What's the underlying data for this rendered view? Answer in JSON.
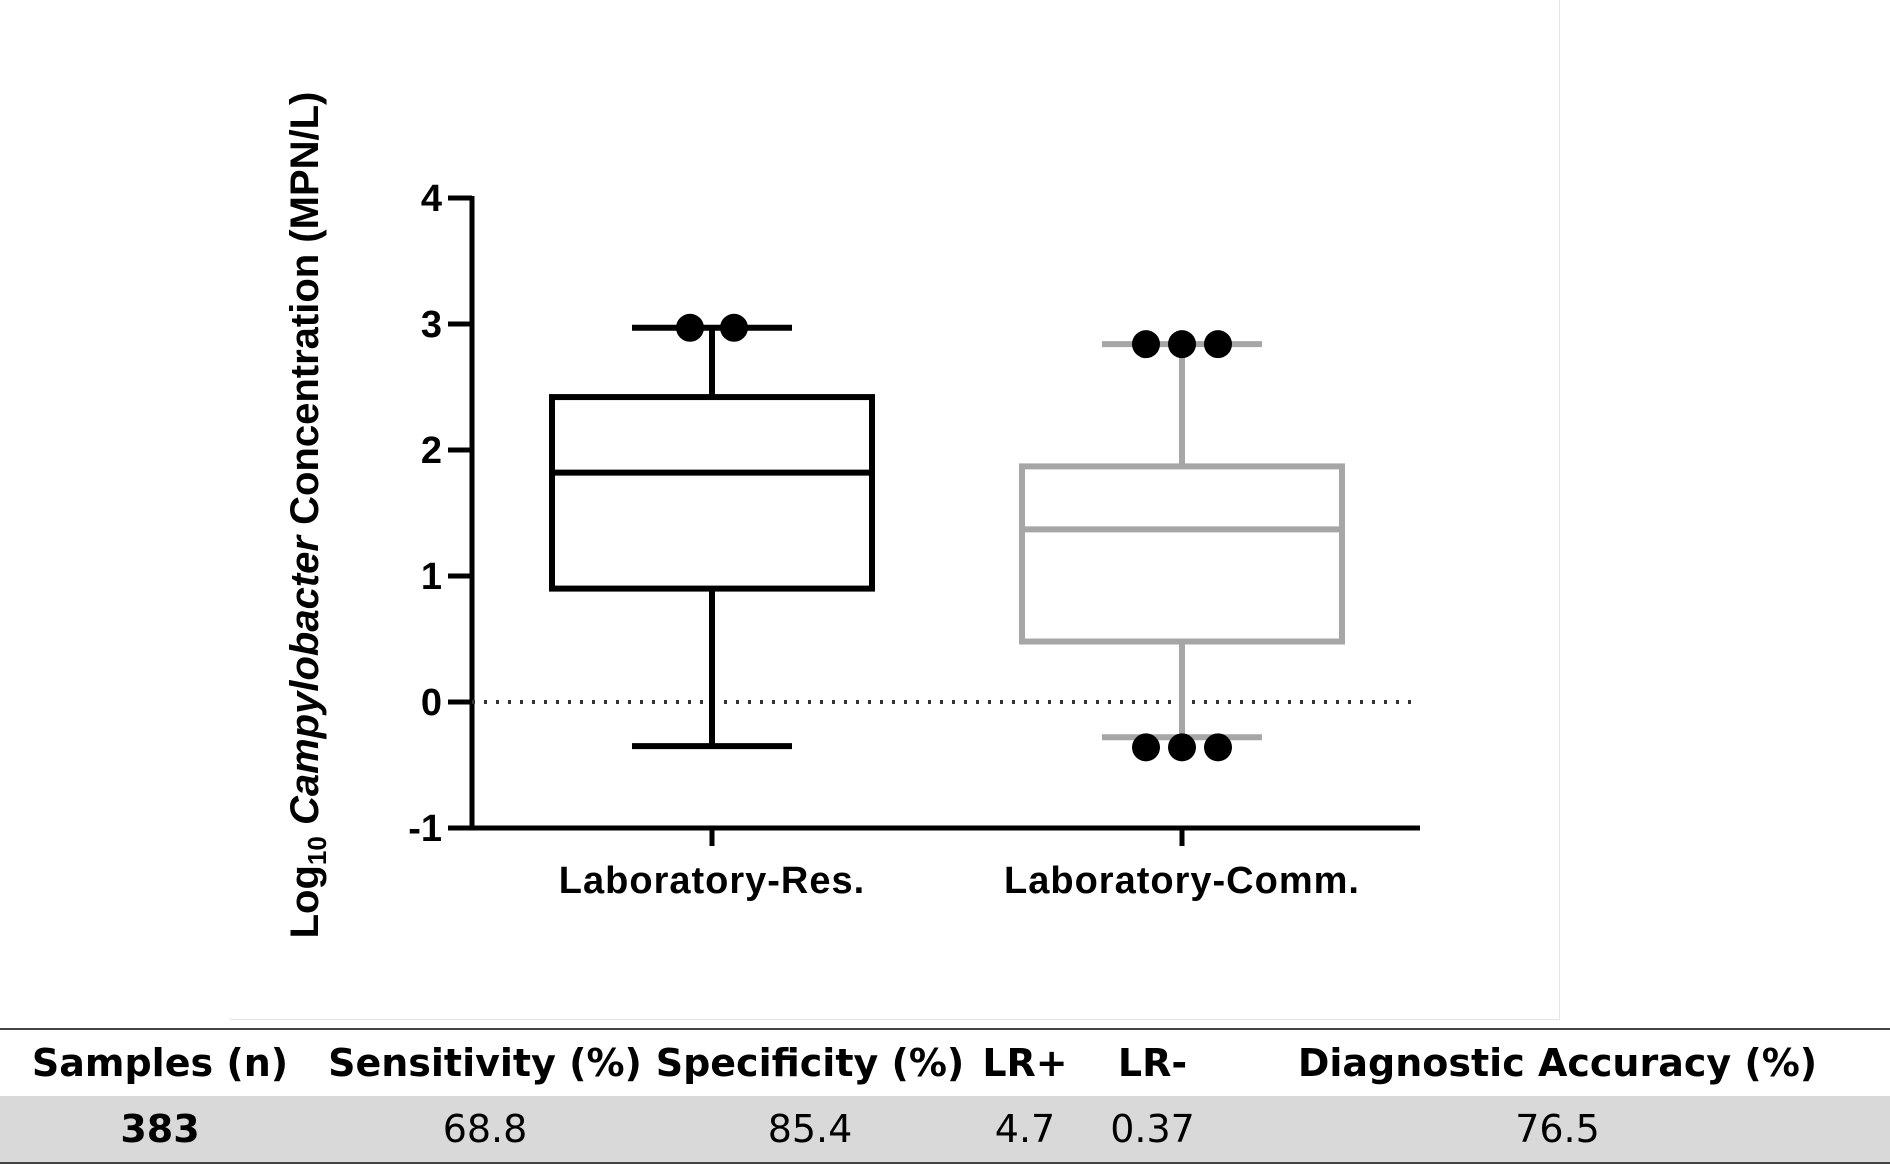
{
  "chart_data": {
    "type": "box",
    "ylabel_prefix": "Log",
    "ylabel_subscript": "10",
    "ylabel_italic": "Campylobacter",
    "ylabel_suffix": "Concentration  (MPN/L)",
    "ylim": [
      -1,
      4
    ],
    "yticks": [
      "-1",
      "0",
      "1",
      "2",
      "3",
      "4"
    ],
    "reference_line_y": 0,
    "categories": [
      "Laboratory-Res.",
      "Laboratory-Comm."
    ],
    "boxes": [
      {
        "name": "Laboratory-Res.",
        "whisker_low": -0.35,
        "q1": 0.9,
        "median": 1.82,
        "q3": 2.42,
        "whisker_high": 2.97,
        "outliers": [
          2.97,
          2.97
        ],
        "color": "#000000"
      },
      {
        "name": "Laboratory-Comm.",
        "whisker_low": -0.28,
        "q1": 0.48,
        "median": 1.37,
        "q3": 1.87,
        "whisker_high": 2.84,
        "outliers": [
          2.84,
          2.84,
          2.84,
          -0.36,
          -0.36,
          -0.36
        ],
        "color": "#a6a6a6"
      }
    ]
  },
  "table": {
    "headers": [
      "Samples (n)",
      "Sensitivity (%)",
      "Specificity (%)",
      "LR+",
      "LR-",
      "Diagnostic Accuracy (%)"
    ],
    "values": [
      "383",
      "68.8",
      "85.4",
      "4.7",
      "0.37",
      "76.5"
    ]
  }
}
